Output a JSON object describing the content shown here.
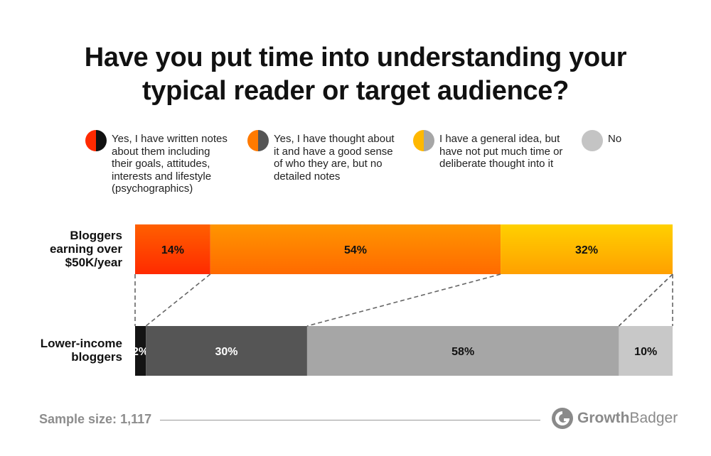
{
  "title": "Have you put time into understanding your\ntypical reader or target audience?",
  "legend": [
    {
      "label": "Yes, I have written notes\nabout them including\ntheir goals, attitudes,\ninterests and lifestyle\n(psychographics)",
      "color_left": "#ff2a00",
      "color_right": "#111111"
    },
    {
      "label": "Yes, I have thought about\nit and have a good sense\nof who they are, but no\ndetailed notes",
      "color_left": "#ff7a00",
      "color_right": "#555555"
    },
    {
      "label": "I have a general idea, but\nhave not put much time or\ndeliberate thought into it",
      "color_left": "#ffb800",
      "color_right": "#a6a6a6"
    },
    {
      "label": "No",
      "color_left": "#c4c4c4",
      "color_right": "#c4c4c4"
    }
  ],
  "chart_data": {
    "type": "bar",
    "orientation": "horizontal-stacked-100",
    "categories": [
      "Bloggers\nearning over\n$50K/year",
      "Lower-income\nbloggers"
    ],
    "series": [
      {
        "name": "Yes, I have written notes about them including their goals, attitudes, interests and lifestyle (psychographics)",
        "values": [
          14,
          2
        ],
        "labels": [
          "14%",
          "2%"
        ]
      },
      {
        "name": "Yes, I have thought about it and have a good sense of who they are, but no detailed notes",
        "values": [
          54,
          30
        ],
        "labels": [
          "54%",
          "30%"
        ]
      },
      {
        "name": "I have a general idea, but have not put much time or deliberate thought into it",
        "values": [
          32,
          58
        ],
        "labels": [
          "32%",
          "58%"
        ]
      },
      {
        "name": "No",
        "values": [
          0,
          10
        ],
        "labels": [
          "",
          "10%"
        ]
      }
    ],
    "colors": {
      "top": [
        [
          "#ff2a00",
          "#ff6000"
        ],
        [
          "#ff6a00",
          "#ff9500"
        ],
        [
          "#ffa000",
          "#ffd000"
        ],
        [
          "#ffffff",
          "#ffffff"
        ]
      ],
      "bottom": [
        "#141414",
        "#555555",
        "#a6a6a6",
        "#c8c8c8"
      ],
      "bottom_text": [
        "#ffffff",
        "#ffffff",
        "#111111",
        "#111111"
      ]
    },
    "xlim": [
      0,
      100
    ],
    "grid": false,
    "legend_position": "top"
  },
  "footer": {
    "sample_label": "Sample size:",
    "sample_value": "1,117",
    "brand_bold": "Growth",
    "brand_regular": "Badger"
  }
}
